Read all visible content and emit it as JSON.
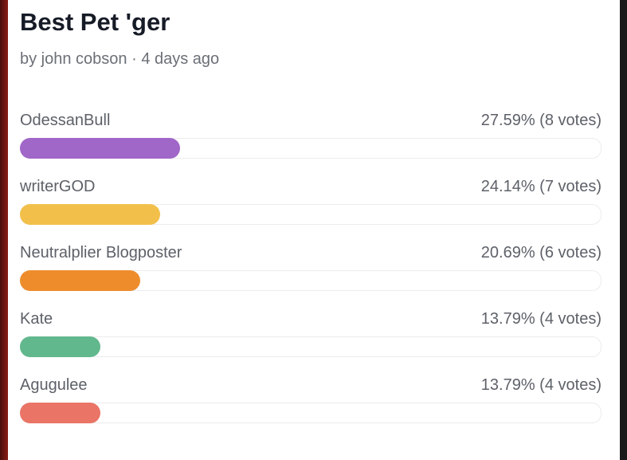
{
  "poll": {
    "title": "Best Pet 'ger",
    "meta": "by john cobson · 4 days ago",
    "options": [
      {
        "name": "OdessanBull",
        "result": "27.59% (8 votes)",
        "percent": 27.59,
        "color": "#a066c8"
      },
      {
        "name": "writerGOD",
        "result": "24.14% (7 votes)",
        "percent": 24.14,
        "color": "#f2c04a"
      },
      {
        "name": "Neutralplier Blogposter",
        "result": "20.69% (6 votes)",
        "percent": 20.69,
        "color": "#ee8c2c"
      },
      {
        "name": "Kate",
        "result": "13.79% (4 votes)",
        "percent": 13.79,
        "color": "#62b88d"
      },
      {
        "name": "Agugulee",
        "result": "13.79% (4 votes)",
        "percent": 13.79,
        "color": "#ea7466"
      }
    ]
  }
}
